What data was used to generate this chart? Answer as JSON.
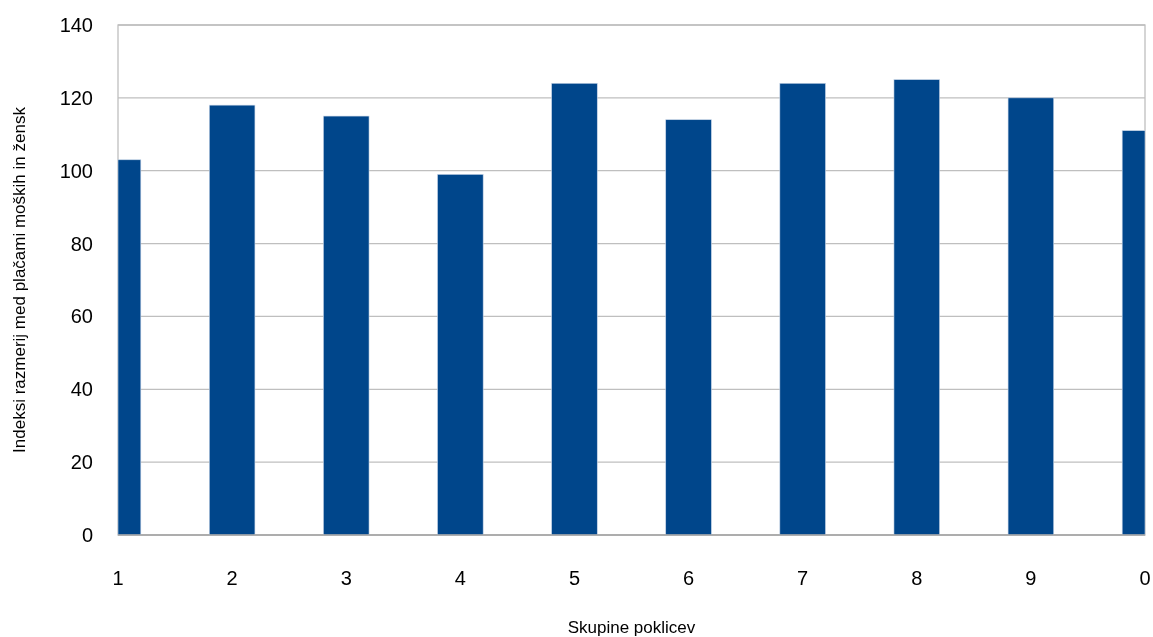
{
  "chart_data": {
    "type": "bar",
    "xlabel": "Skupine poklicev",
    "ylabel": "Indeksi razmerij med plačami moških in žensk",
    "categories": [
      "1",
      "2",
      "3",
      "4",
      "5",
      "6",
      "7",
      "8",
      "9",
      "0"
    ],
    "values": [
      103,
      118,
      115,
      99,
      124,
      114,
      124,
      125,
      120,
      111
    ],
    "color": "#00468b",
    "ylim": [
      0,
      140
    ],
    "yticks": [
      0,
      20,
      40,
      60,
      80,
      100,
      120,
      140
    ],
    "grid": "y"
  }
}
